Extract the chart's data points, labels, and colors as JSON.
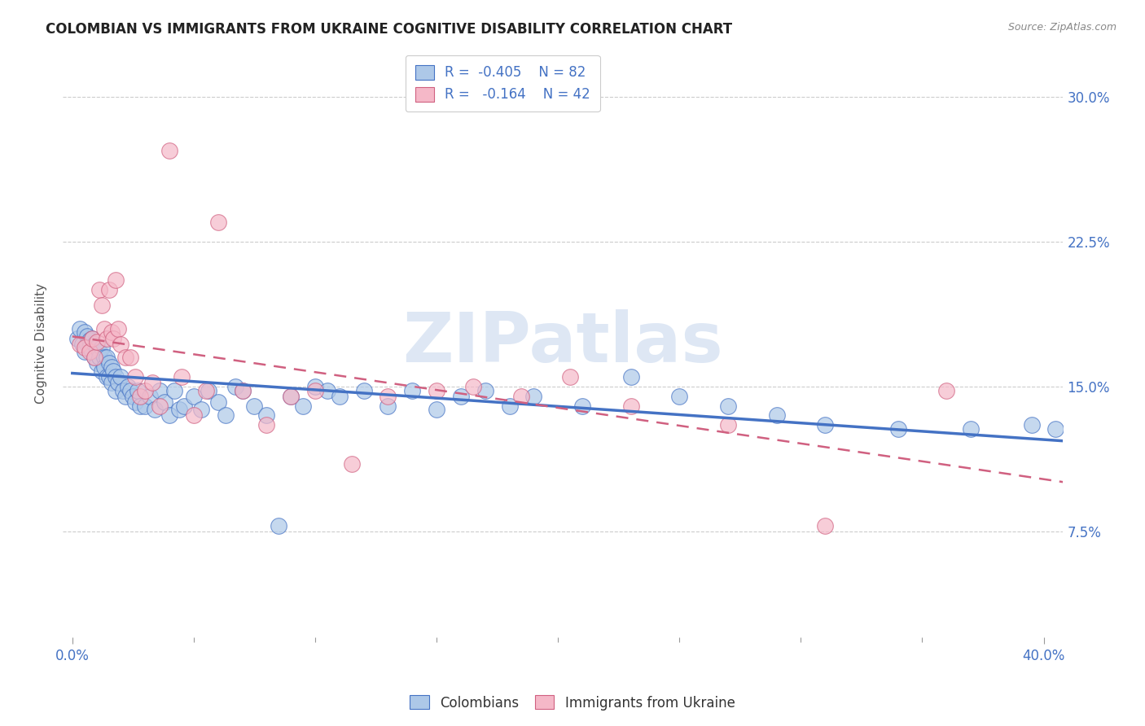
{
  "title": "COLOMBIAN VS IMMIGRANTS FROM UKRAINE COGNITIVE DISABILITY CORRELATION CHART",
  "source": "Source: ZipAtlas.com",
  "ylabel": "Cognitive Disability",
  "ytick_labels": [
    "7.5%",
    "15.0%",
    "22.5%",
    "30.0%"
  ],
  "ytick_values": [
    0.075,
    0.15,
    0.225,
    0.3
  ],
  "xlim": [
    -0.004,
    0.408
  ],
  "ylim": [
    0.02,
    0.325
  ],
  "color_blue": "#adc8e8",
  "color_pink": "#f5b8c8",
  "trendline_blue": "#4472c4",
  "trendline_pink": "#d06080",
  "watermark": "ZIPatlas",
  "colombians_x": [
    0.002,
    0.003,
    0.004,
    0.005,
    0.005,
    0.006,
    0.006,
    0.007,
    0.007,
    0.008,
    0.008,
    0.009,
    0.009,
    0.01,
    0.01,
    0.011,
    0.011,
    0.012,
    0.012,
    0.013,
    0.013,
    0.014,
    0.014,
    0.015,
    0.015,
    0.016,
    0.016,
    0.017,
    0.018,
    0.018,
    0.019,
    0.02,
    0.021,
    0.022,
    0.023,
    0.024,
    0.025,
    0.026,
    0.027,
    0.028,
    0.03,
    0.032,
    0.034,
    0.036,
    0.038,
    0.04,
    0.042,
    0.044,
    0.046,
    0.05,
    0.053,
    0.056,
    0.06,
    0.063,
    0.067,
    0.07,
    0.075,
    0.08,
    0.085,
    0.09,
    0.095,
    0.1,
    0.105,
    0.11,
    0.12,
    0.13,
    0.14,
    0.15,
    0.16,
    0.17,
    0.18,
    0.19,
    0.21,
    0.23,
    0.25,
    0.27,
    0.29,
    0.31,
    0.34,
    0.37,
    0.395,
    0.405
  ],
  "colombians_y": [
    0.175,
    0.18,
    0.172,
    0.178,
    0.168,
    0.176,
    0.172,
    0.174,
    0.17,
    0.175,
    0.168,
    0.172,
    0.165,
    0.17,
    0.162,
    0.168,
    0.165,
    0.17,
    0.158,
    0.165,
    0.16,
    0.165,
    0.155,
    0.162,
    0.155,
    0.16,
    0.152,
    0.158,
    0.155,
    0.148,
    0.152,
    0.155,
    0.148,
    0.145,
    0.15,
    0.148,
    0.145,
    0.142,
    0.148,
    0.14,
    0.14,
    0.145,
    0.138,
    0.148,
    0.142,
    0.135,
    0.148,
    0.138,
    0.14,
    0.145,
    0.138,
    0.148,
    0.142,
    0.135,
    0.15,
    0.148,
    0.14,
    0.135,
    0.078,
    0.145,
    0.14,
    0.15,
    0.148,
    0.145,
    0.148,
    0.14,
    0.148,
    0.138,
    0.145,
    0.148,
    0.14,
    0.145,
    0.14,
    0.155,
    0.145,
    0.14,
    0.135,
    0.13,
    0.128,
    0.128,
    0.13,
    0.128
  ],
  "ukraine_x": [
    0.003,
    0.005,
    0.007,
    0.008,
    0.009,
    0.01,
    0.011,
    0.012,
    0.013,
    0.014,
    0.015,
    0.016,
    0.017,
    0.018,
    0.019,
    0.02,
    0.022,
    0.024,
    0.026,
    0.028,
    0.03,
    0.033,
    0.036,
    0.04,
    0.045,
    0.05,
    0.055,
    0.06,
    0.07,
    0.08,
    0.09,
    0.1,
    0.115,
    0.13,
    0.15,
    0.165,
    0.185,
    0.205,
    0.23,
    0.27,
    0.31,
    0.36
  ],
  "ukraine_y": [
    0.172,
    0.17,
    0.168,
    0.175,
    0.165,
    0.173,
    0.2,
    0.192,
    0.18,
    0.175,
    0.2,
    0.178,
    0.175,
    0.205,
    0.18,
    0.172,
    0.165,
    0.165,
    0.155,
    0.145,
    0.148,
    0.152,
    0.14,
    0.272,
    0.155,
    0.135,
    0.148,
    0.235,
    0.148,
    0.13,
    0.145,
    0.148,
    0.11,
    0.145,
    0.148,
    0.15,
    0.145,
    0.155,
    0.14,
    0.13,
    0.078,
    0.148
  ],
  "xtick_minor_positions": [
    0.05,
    0.1,
    0.15,
    0.2,
    0.25,
    0.3,
    0.35
  ],
  "xtick_major_positions": [
    0.0,
    0.4
  ]
}
